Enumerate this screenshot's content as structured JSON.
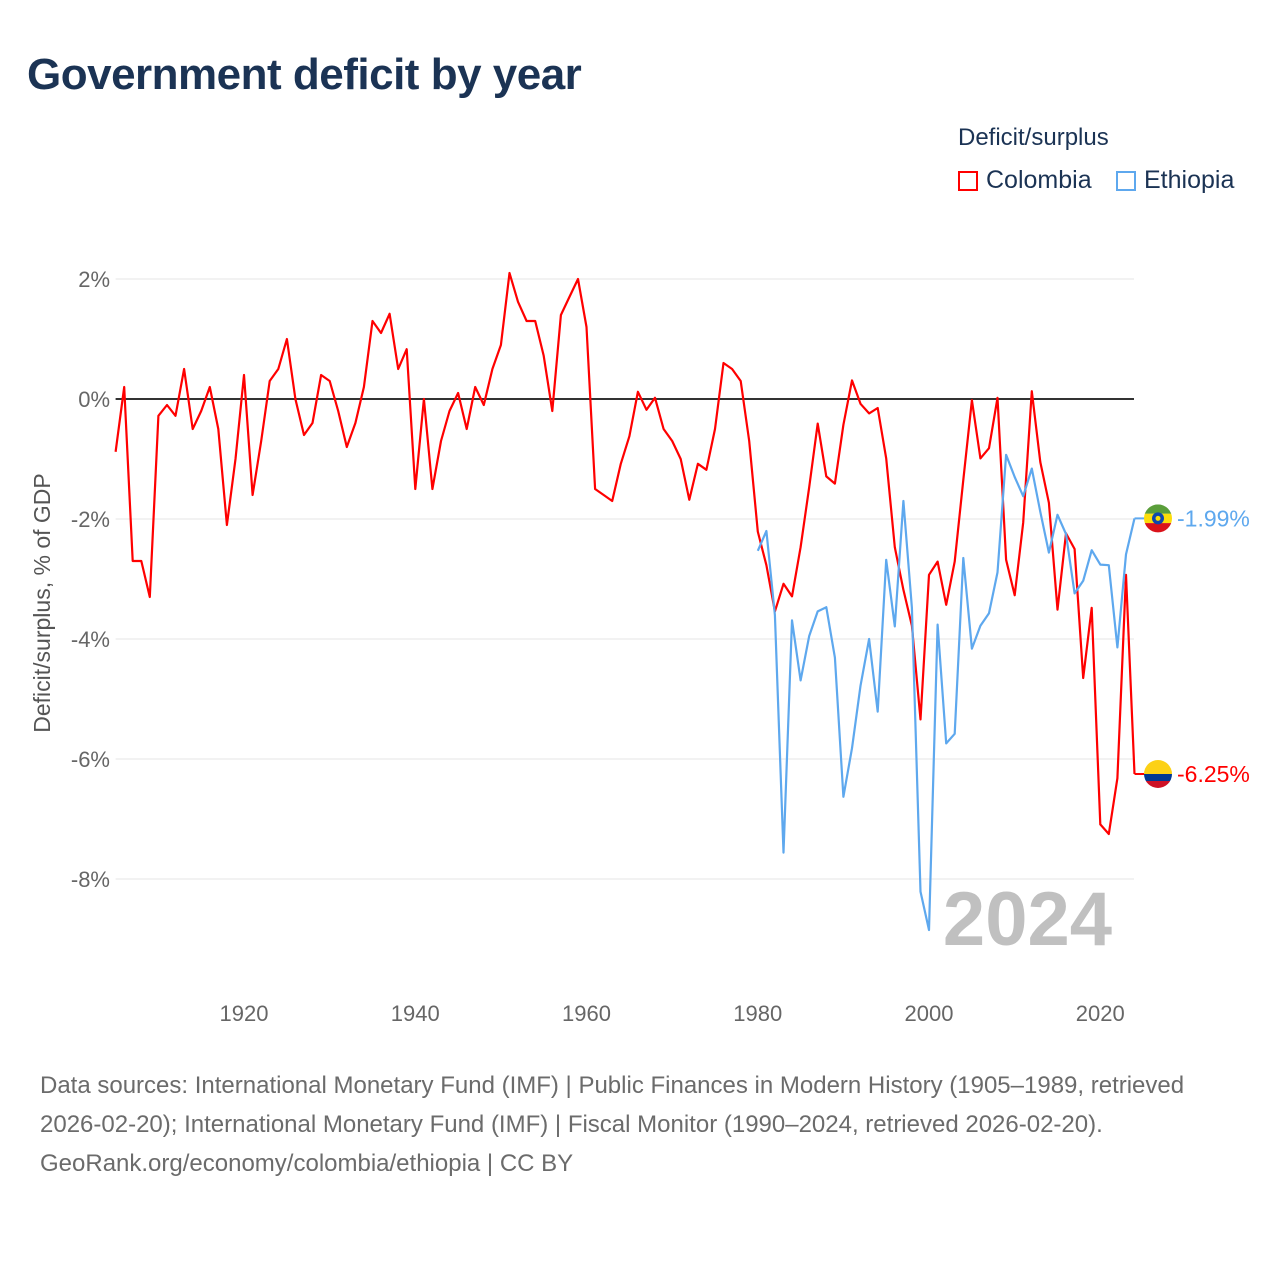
{
  "title": "Government deficit by year",
  "legend": {
    "title": "Deficit/surplus",
    "items": [
      {
        "label": "Colombia",
        "color": "#ff0000"
      },
      {
        "label": "Ethiopia",
        "color": "#5ea8ee"
      }
    ]
  },
  "footer": {
    "sources": "Data sources: International Monetary Fund (IMF) | Public Finances in Modern History (1905–1989, retrieved 2026-02-20); International Monetary Fund (IMF) | Fiscal Monitor (1990–2024, retrieved 2026-02-20).",
    "credit": "GeoRank.org/economy/colombia/ethiopia | CC BY"
  },
  "chart_data": {
    "type": "line",
    "title": "Government deficit by year",
    "xlabel": "",
    "ylabel": "Deficit/surplus, % of GDP",
    "xlim": [
      1905,
      2024
    ],
    "ylim": [
      -9.3,
      2.2
    ],
    "x_ticks": [
      1920,
      1940,
      1960,
      1980,
      2000,
      2020
    ],
    "y_ticks": [
      2,
      0,
      -2,
      -4,
      -6,
      -8
    ],
    "y_tick_labels": [
      "2%",
      "0%",
      "-2%",
      "-4%",
      "-6%",
      "-8%"
    ],
    "grid": true,
    "year_watermark": "2024",
    "series": [
      {
        "name": "Colombia",
        "color": "#ff0000",
        "end_label": "-6.25%",
        "start_year": 1905,
        "values": [
          -0.88,
          0.2,
          -2.7,
          -2.7,
          -3.3,
          -0.28,
          -0.1,
          -0.28,
          0.5,
          -0.5,
          -0.2,
          0.2,
          -0.5,
          -2.1,
          -1.0,
          0.4,
          -1.6,
          -0.7,
          0.3,
          0.5,
          1.0,
          0.0,
          -0.6,
          -0.4,
          0.4,
          0.3,
          -0.2,
          -0.8,
          -0.4,
          0.2,
          1.3,
          1.1,
          1.42,
          0.5,
          0.83,
          -1.5,
          0.0,
          -1.5,
          -0.7,
          -0.2,
          0.1,
          -0.5,
          0.2,
          -0.1,
          0.5,
          0.9,
          2.1,
          1.62,
          1.3,
          1.3,
          0.72,
          -0.2,
          1.4,
          1.7,
          2.0,
          1.2,
          -1.5,
          -1.6,
          -1.7,
          -1.08,
          -0.62,
          0.12,
          -0.18,
          0.02,
          -0.5,
          -0.7,
          -1.0,
          -1.68,
          -1.08,
          -1.18,
          -0.5,
          0.6,
          0.5,
          0.3,
          -0.7,
          -2.21,
          -2.77,
          -3.54,
          -3.08,
          -3.29,
          -2.47,
          -1.47,
          -0.41,
          -1.29,
          -1.41,
          -0.43,
          0.31,
          -0.08,
          -0.24,
          -0.15,
          -0.99,
          -2.47,
          -3.18,
          -3.78,
          -5.34,
          -2.93,
          -2.71,
          -3.43,
          -2.71,
          -1.35,
          -0.02,
          -0.99,
          -0.82,
          0.02,
          -2.68,
          -3.27,
          -2.06,
          0.13,
          -1.05,
          -1.73,
          -3.51,
          -2.24,
          -2.5,
          -4.65,
          -3.48,
          -7.09,
          -7.25,
          -6.32,
          -2.93,
          -6.25
        ]
      },
      {
        "name": "Ethiopia",
        "color": "#5ea8ee",
        "end_label": "-1.99%",
        "start_year": 1980,
        "values": [
          -2.53,
          -2.2,
          -3.6,
          -7.56,
          -3.69,
          -4.69,
          -3.95,
          -3.54,
          -3.47,
          -4.31,
          -6.63,
          -5.82,
          -4.78,
          -4.0,
          -5.21,
          -2.68,
          -3.79,
          -1.7,
          -3.48,
          -8.21,
          -8.85,
          -3.76,
          -5.74,
          -5.58,
          -2.65,
          -4.16,
          -3.78,
          -3.57,
          -2.89,
          -0.93,
          -1.3,
          -1.62,
          -1.16,
          -1.88,
          -2.56,
          -1.93,
          -2.25,
          -3.24,
          -3.03,
          -2.52,
          -2.76,
          -2.77,
          -4.14,
          -2.59,
          -1.99
        ]
      }
    ]
  }
}
